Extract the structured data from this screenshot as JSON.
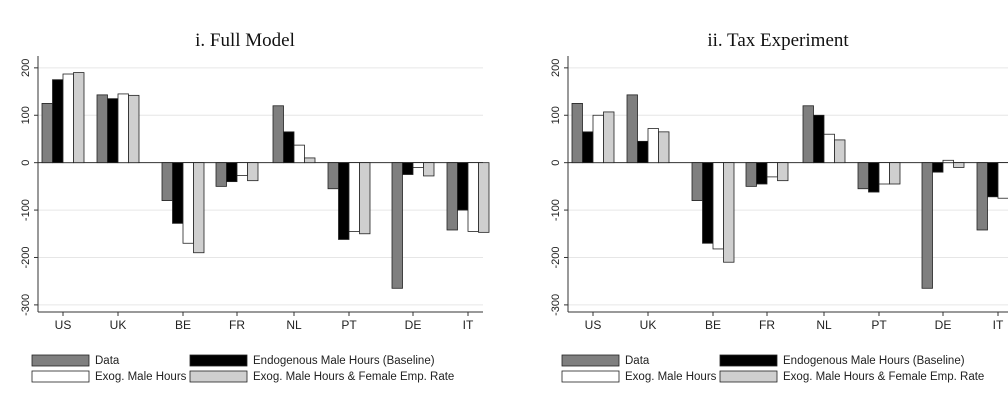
{
  "chart_data": [
    {
      "type": "bar",
      "title": "i. Full Model",
      "xlabel": "",
      "ylabel": "",
      "ylim": [
        -315,
        225
      ],
      "yticks": [
        200,
        100,
        0,
        -100,
        -200,
        -300
      ],
      "ytick_labels": [
        "200",
        "100",
        "0",
        "-100",
        "-200",
        "-300"
      ],
      "grid": true,
      "categories": [
        "US",
        "UK",
        "BE",
        "FR",
        "NL",
        "PT",
        "DE",
        "IT"
      ],
      "series": [
        {
          "name": "Data",
          "color": "#7f7f7f",
          "values": [
            125,
            143,
            -80,
            -50,
            120,
            -55,
            -265,
            -142
          ]
        },
        {
          "name": "Endogenous Male Hours (Baseline)",
          "color": "#000000",
          "values": [
            175,
            135,
            -128,
            -40,
            65,
            -162,
            -25,
            -100
          ]
        },
        {
          "name": "Exog. Male Hours",
          "color": "#ffffff",
          "values": [
            187,
            145,
            -170,
            -27,
            37,
            -145,
            -10,
            -145
          ]
        },
        {
          "name": "Exog. Male Hours & Female Emp. Rate",
          "color": "#cfcfcf",
          "values": [
            190,
            142,
            -190,
            -38,
            10,
            -150,
            -28,
            -147
          ]
        }
      ]
    },
    {
      "type": "bar",
      "title": "ii. Tax Experiment",
      "xlabel": "",
      "ylabel": "",
      "ylim": [
        -315,
        225
      ],
      "yticks": [
        200,
        100,
        0,
        -100,
        -200,
        -300
      ],
      "ytick_labels": [
        "200",
        "100",
        "0",
        "-100",
        "-200",
        "-300"
      ],
      "grid": true,
      "categories": [
        "US",
        "UK",
        "BE",
        "FR",
        "NL",
        "PT",
        "DE",
        "IT"
      ],
      "series": [
        {
          "name": "Data",
          "color": "#7f7f7f",
          "values": [
            125,
            143,
            -80,
            -50,
            120,
            -55,
            -265,
            -142
          ]
        },
        {
          "name": "Endogenous Male Hours (Baseline)",
          "color": "#000000",
          "values": [
            65,
            45,
            -170,
            -45,
            100,
            -62,
            -20,
            -72
          ]
        },
        {
          "name": "Exog. Male Hours",
          "color": "#ffffff",
          "values": [
            100,
            72,
            -182,
            -30,
            60,
            -45,
            5,
            -75
          ]
        },
        {
          "name": "Exog. Male Hours & Female Emp. Rate",
          "color": "#cfcfcf",
          "values": [
            107,
            65,
            -210,
            -38,
            48,
            -45,
            -10,
            -78
          ]
        }
      ]
    }
  ],
  "legend": {
    "placement": "bottom",
    "items": [
      {
        "label": "Data",
        "color": "#7f7f7f"
      },
      {
        "label": "Endogenous Male Hours (Baseline)",
        "color": "#000000"
      },
      {
        "label": "Exog. Male Hours",
        "color": "#ffffff"
      },
      {
        "label": "Exog. Male Hours & Female Emp. Rate",
        "color": "#cfcfcf"
      }
    ]
  }
}
